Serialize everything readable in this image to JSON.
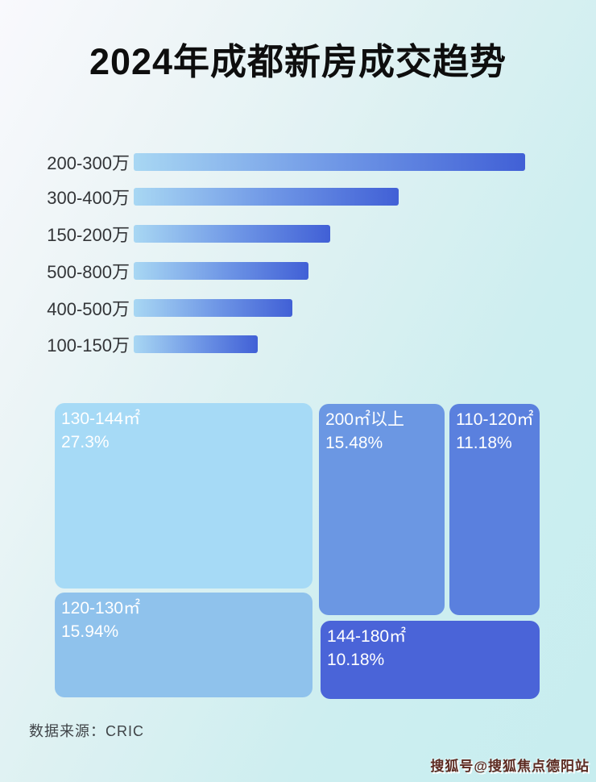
{
  "page": {
    "title": "2024年成都新房成交趋势",
    "source_label": "数据来源：CRIC",
    "watermark": "搜狐号@搜狐焦点德阳站"
  },
  "colors": {
    "bar_gradient_start": "#a8d7f3",
    "bar_gradient_mid": "#6f97e6",
    "bar_gradient_end": "#4160d6",
    "title_color": "#0e0e0e",
    "bar_label_color": "#333538",
    "treemap_text_color": "#ffffff",
    "background_top_left": "#f9f9fd",
    "background_bottom_right": "#c7edef"
  },
  "chart_data": [
    {
      "type": "bar",
      "orientation": "horizontal",
      "title": "2024年成都新房成交趋势",
      "categories": [
        "200-300万",
        "300-400万",
        "150-200万",
        "500-800万",
        "400-500万",
        "100-150万"
      ],
      "values": [
        100,
        67.7,
        50.2,
        44.7,
        40.5,
        31.7
      ],
      "value_note": "bars are unlabeled; values are estimated relative lengths as percent of the longest bar",
      "xlabel": "",
      "ylabel": "",
      "xlim": [
        0,
        100
      ],
      "grid": false,
      "legend": false
    },
    {
      "type": "treemap",
      "title": "",
      "items": [
        {
          "label": "130-144㎡",
          "value_pct": 27.3,
          "display": "27.3%",
          "color": "#a6daf6"
        },
        {
          "label": "200㎡以上",
          "value_pct": 15.48,
          "display": "15.48%",
          "color": "#6b97e3"
        },
        {
          "label": "110-120㎡",
          "value_pct": 11.18,
          "display": "11.18%",
          "color": "#5a80de"
        },
        {
          "label": "120-130㎡",
          "value_pct": 15.94,
          "display": "15.94%",
          "color": "#8fc2ec"
        },
        {
          "label": "144-180㎡",
          "value_pct": 10.18,
          "display": "10.18%",
          "color": "#4a64d8"
        }
      ]
    }
  ]
}
